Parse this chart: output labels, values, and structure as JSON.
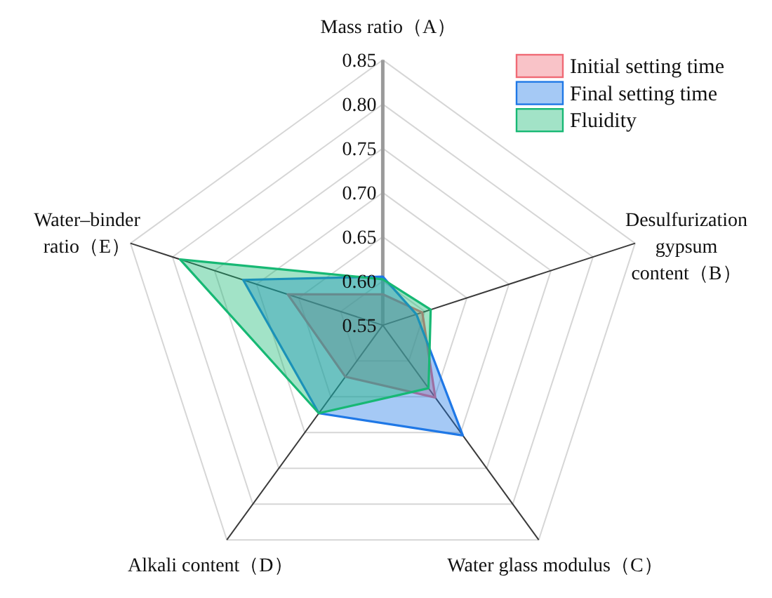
{
  "chart_data": {
    "type": "radar",
    "categories": [
      "Mass ratio（A）",
      "Desulfurization gypsum content（B）",
      "Water glass modulus（C）",
      "Alkali content（D）",
      "Water–binder ratio（E）"
    ],
    "series": [
      {
        "name": "Initial setting time",
        "color": "#f06a75",
        "values": [
          0.585,
          0.597,
          0.651,
          0.622,
          0.663
        ]
      },
      {
        "name": "Final setting time",
        "color": "#1f78e6",
        "values": [
          0.605,
          0.59,
          0.704,
          0.673,
          0.716
        ]
      },
      {
        "name": "Fluidity",
        "color": "#17b874",
        "values": [
          0.602,
          0.607,
          0.638,
          0.673,
          0.791
        ]
      }
    ],
    "ylim": [
      0.55,
      0.85
    ],
    "yticks": [
      0.55,
      {
        "value": 0.6,
        "label": "0.60"
      },
      0.65,
      {
        "value": 0.7,
        "label": "0.70"
      },
      0.75,
      {
        "value": 0.8,
        "label": "0.80"
      },
      0.85
    ],
    "grid": true,
    "legend": "top right"
  }
}
